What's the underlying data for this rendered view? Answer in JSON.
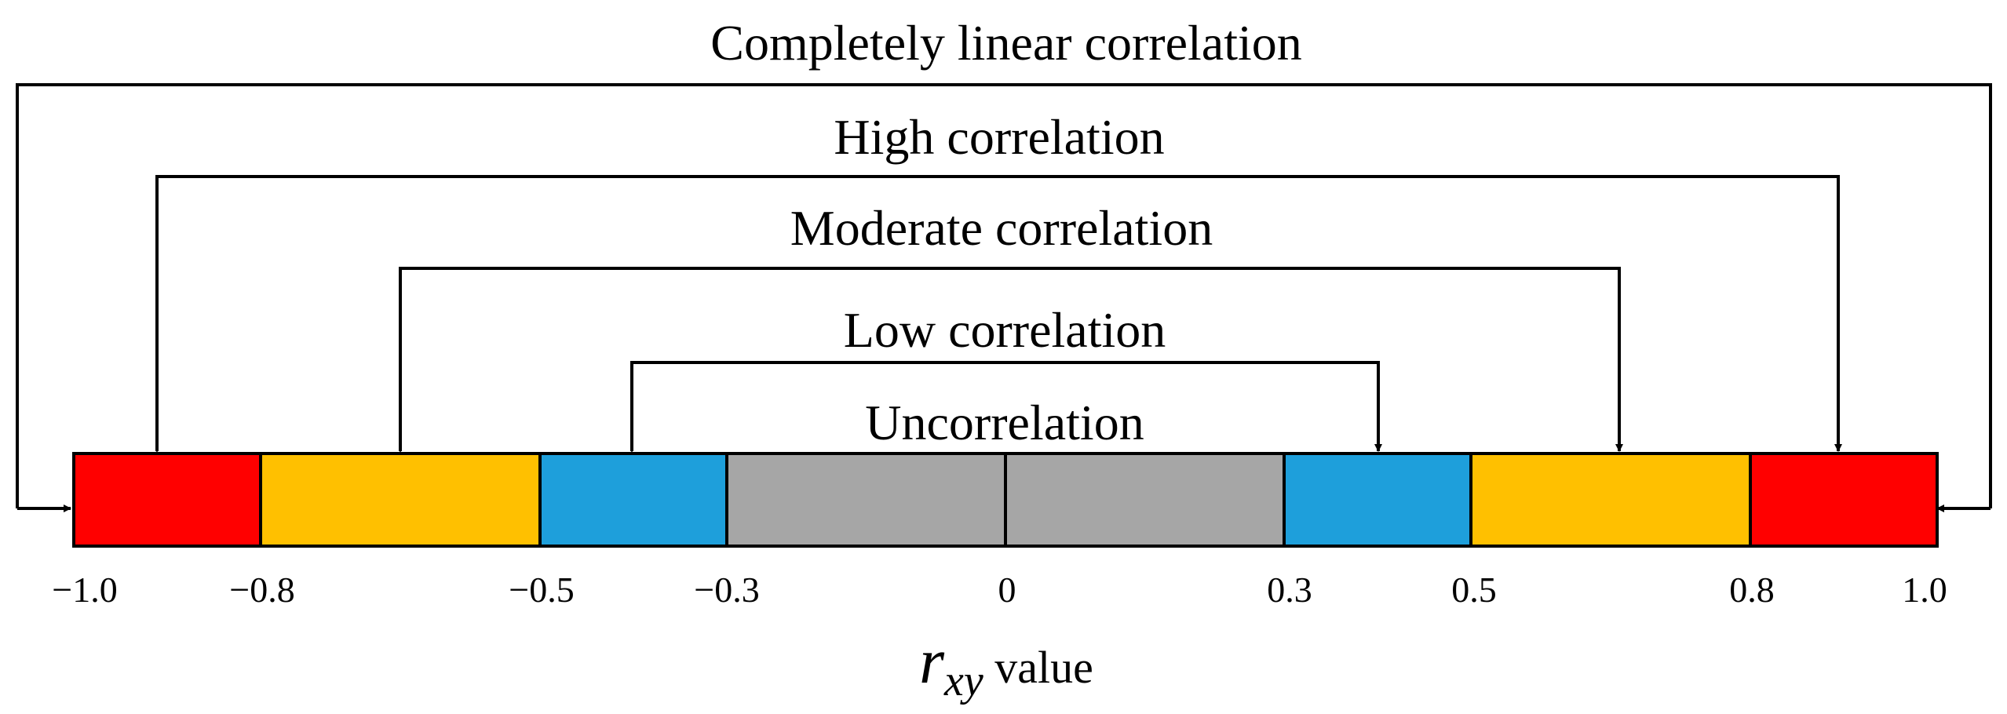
{
  "labels": {
    "completely": "Completely linear correlation",
    "high": "High correlation",
    "moderate": "Moderate correlation",
    "low": "Low correlation",
    "uncorrelation": "Uncorrelation"
  },
  "ticks": [
    "−1.0",
    "−0.8",
    "−0.5",
    "−0.3",
    "0",
    "0.3",
    "0.5",
    "0.8",
    "1.0"
  ],
  "axis": {
    "symbol": "r",
    "subscript": "xy",
    "suffix": " value"
  },
  "colors": {
    "completely": "#ff0000",
    "high": "#ffc000",
    "moderate": "#1e9fdb",
    "low": "#a6a6a6"
  }
}
